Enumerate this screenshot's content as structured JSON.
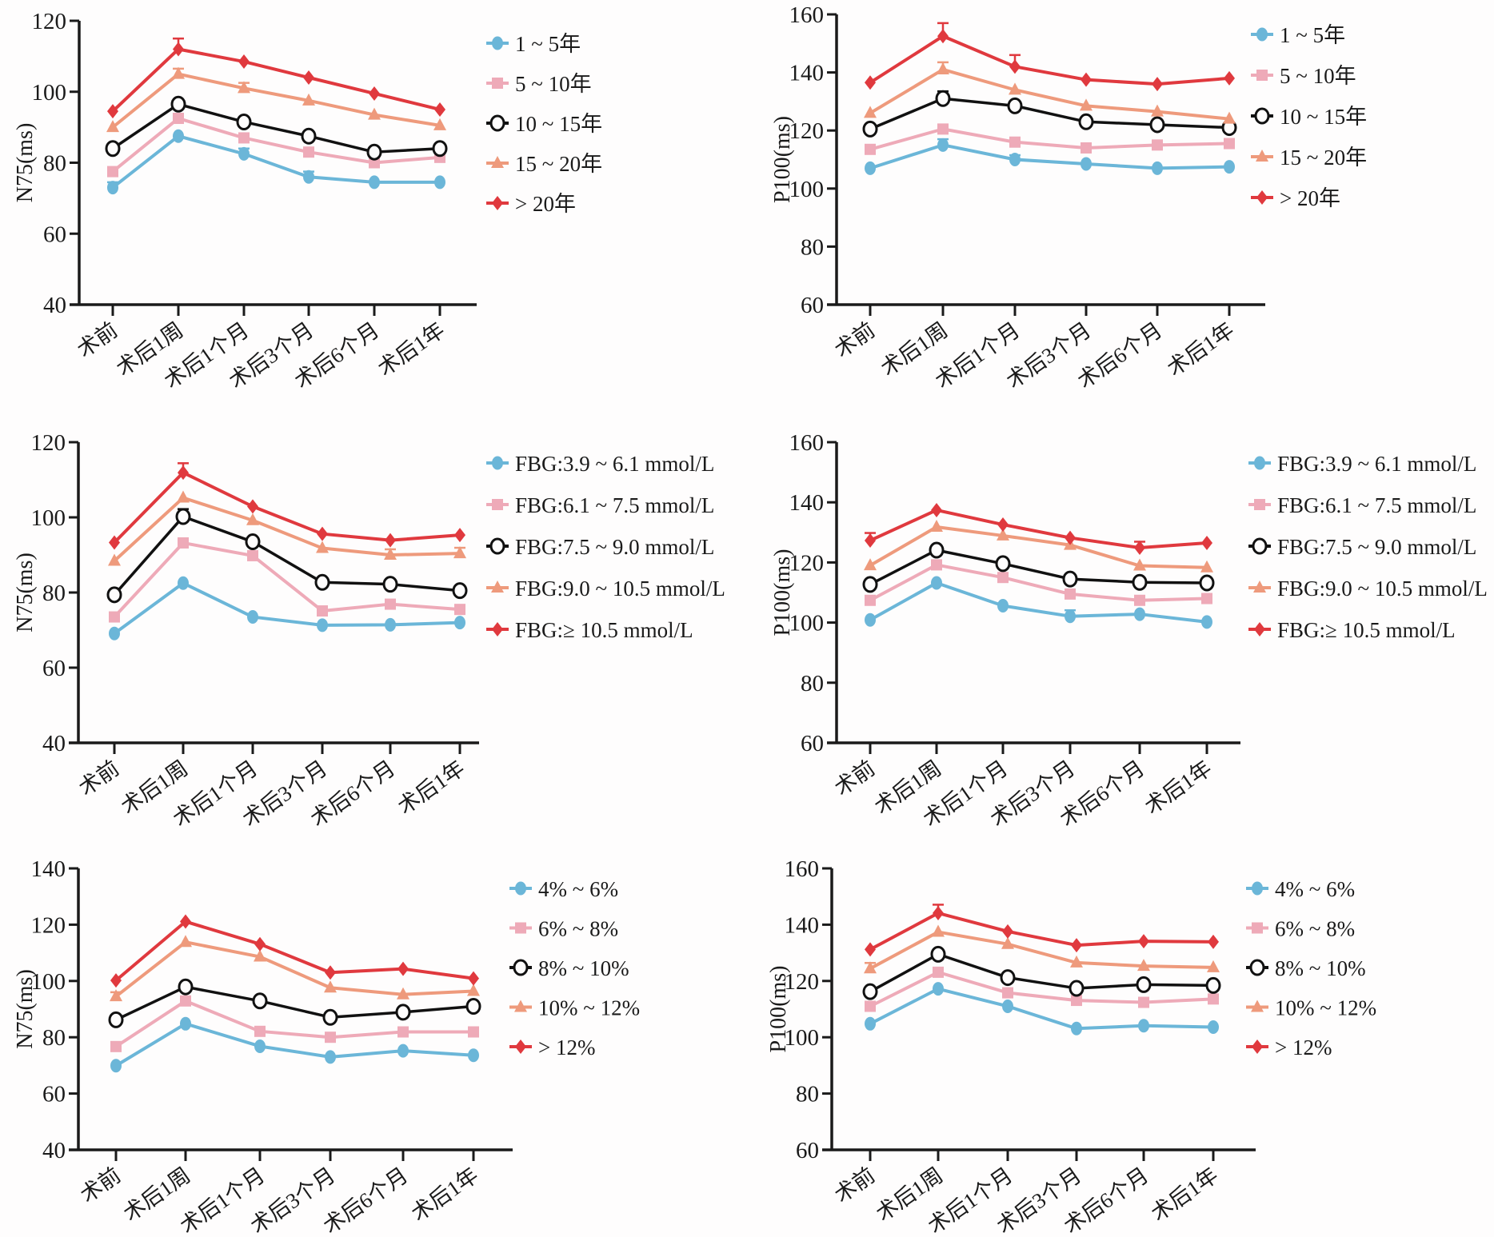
{
  "chart_data": [
    {
      "id": "n75-duration",
      "type": "line",
      "ylabel": "N75(ms)",
      "ylim": [
        40,
        120
      ],
      "yticks": [
        40,
        60,
        80,
        100,
        120
      ],
      "categories": [
        "术前",
        "术后1周",
        "术后1个月",
        "术后3个月",
        "术后6个月",
        "术后1年"
      ],
      "grid": false,
      "legend_position": "right",
      "series": [
        {
          "name": "1 ~ 5年",
          "marker": "circle",
          "color": "#6bb6d8",
          "values": [
            73.0,
            87.5,
            82.5,
            76.0,
            74.5,
            74.5
          ],
          "err": [
            1.5,
            0,
            1.5,
            1.5,
            0,
            0
          ]
        },
        {
          "name": "5 ~ 10年",
          "marker": "square",
          "color": "#eeaab8",
          "values": [
            77.5,
            92.5,
            87.0,
            83.0,
            80.0,
            81.5
          ],
          "err": [
            0,
            0,
            0,
            0,
            0,
            0
          ]
        },
        {
          "name": "10 ~ 15年",
          "marker": "open-circle",
          "color": "#111111",
          "values": [
            84.0,
            96.5,
            91.5,
            87.5,
            83.0,
            84.0
          ],
          "err": [
            0,
            0,
            0,
            0,
            0,
            0
          ]
        },
        {
          "name": "15 ~ 20年",
          "marker": "triangle",
          "color": "#ee9a7c",
          "values": [
            90.0,
            105.0,
            101.0,
            97.5,
            93.5,
            90.5
          ],
          "err": [
            0,
            1.5,
            1.5,
            0,
            0,
            0
          ]
        },
        {
          "name": "> 20年",
          "marker": "diamond",
          "color": "#e0393e",
          "values": [
            94.5,
            112.0,
            108.5,
            104.0,
            99.5,
            95.0
          ],
          "err": [
            0,
            3.0,
            0,
            0,
            0,
            0
          ]
        }
      ]
    },
    {
      "id": "p100-duration",
      "type": "line",
      "ylabel": "P100(ms)",
      "ylim": [
        60,
        160
      ],
      "yticks": [
        60,
        80,
        100,
        120,
        140,
        160
      ],
      "categories": [
        "术前",
        "术后1周",
        "术后1个月",
        "术后3个月",
        "术后6个月",
        "术后1年"
      ],
      "grid": false,
      "legend_position": "right",
      "series": [
        {
          "name": "1 ~ 5年",
          "marker": "circle",
          "color": "#6bb6d8",
          "values": [
            107.0,
            115.0,
            110.0,
            108.5,
            107.0,
            107.5
          ],
          "err": [
            0,
            2.0,
            1.5,
            0,
            0,
            0
          ]
        },
        {
          "name": "5 ~ 10年",
          "marker": "square",
          "color": "#eeaab8",
          "values": [
            113.5,
            120.5,
            116.0,
            114.0,
            115.0,
            115.5
          ],
          "err": [
            0,
            0,
            0,
            0,
            0,
            0
          ]
        },
        {
          "name": "10 ~ 15年",
          "marker": "open-circle",
          "color": "#111111",
          "values": [
            120.5,
            131.0,
            128.5,
            123.0,
            122.0,
            121.0
          ],
          "err": [
            0,
            2.5,
            0,
            0,
            0,
            0
          ]
        },
        {
          "name": "15 ~ 20年",
          "marker": "triangle",
          "color": "#ee9a7c",
          "values": [
            126.0,
            141.0,
            134.0,
            128.5,
            126.5,
            124.0
          ],
          "err": [
            0,
            2.5,
            0,
            0,
            0,
            0
          ]
        },
        {
          "name": "> 20年",
          "marker": "diamond",
          "color": "#e0393e",
          "values": [
            136.5,
            152.5,
            142.0,
            137.5,
            136.0,
            138.0
          ],
          "err": [
            0,
            4.5,
            4.0,
            0,
            0,
            0
          ]
        }
      ]
    },
    {
      "id": "n75-fbg",
      "type": "line",
      "ylabel": "N75(ms)",
      "ylim": [
        40,
        120
      ],
      "yticks": [
        40,
        60,
        80,
        100,
        120
      ],
      "categories": [
        "术前",
        "术后1周",
        "术后1个月",
        "术后3个月",
        "术后6个月",
        "术后1年"
      ],
      "grid": false,
      "legend_position": "right",
      "series": [
        {
          "name": "FBG:3.9 ~ 6.1 mmol/L",
          "marker": "circle",
          "color": "#6bb6d8",
          "values": [
            69.1,
            82.5,
            73.5,
            71.3,
            71.4,
            72.0
          ],
          "err": [
            0,
            0,
            0,
            0,
            0,
            0
          ]
        },
        {
          "name": "FBG:6.1 ~ 7.5 mmol/L",
          "marker": "square",
          "color": "#eeaab8",
          "values": [
            73.5,
            93.2,
            89.8,
            75.1,
            76.9,
            75.5
          ],
          "err": [
            0,
            0,
            0,
            0,
            0,
            0
          ]
        },
        {
          "name": "FBG:7.5 ~ 9.0 mmol/L",
          "marker": "open-circle",
          "color": "#111111",
          "values": [
            79.4,
            100.2,
            93.5,
            82.7,
            82.2,
            80.5
          ],
          "err": [
            0,
            2.0,
            0,
            0,
            0,
            0
          ]
        },
        {
          "name": "FBG:9.0 ~ 10.5 mmol/L",
          "marker": "triangle",
          "color": "#ee9a7c",
          "values": [
            88.4,
            105.2,
            99.2,
            91.8,
            90.0,
            90.4
          ],
          "err": [
            0,
            0,
            0,
            0,
            1.5,
            1.5
          ]
        },
        {
          "name": "FBG:≥ 10.5 mmol/L",
          "marker": "diamond",
          "color": "#e0393e",
          "values": [
            93.3,
            111.9,
            102.9,
            95.6,
            93.9,
            95.3
          ],
          "err": [
            0,
            2.5,
            0,
            0,
            0,
            0
          ]
        }
      ]
    },
    {
      "id": "p100-fbg",
      "type": "line",
      "ylabel": "P100(ms)",
      "ylim": [
        60,
        160
      ],
      "yticks": [
        60,
        80,
        100,
        120,
        140,
        160
      ],
      "categories": [
        "术前",
        "术后1周",
        "术后1个月",
        "术后3个月",
        "术后6个月",
        "术后1年"
      ],
      "grid": false,
      "legend_position": "right",
      "series": [
        {
          "name": "FBG:3.9 ~ 6.1 mmol/L",
          "marker": "circle",
          "color": "#6bb6d8",
          "values": [
            100.9,
            113.2,
            105.6,
            102.1,
            102.8,
            100.2
          ],
          "err": [
            0,
            0,
            0,
            2.0,
            0,
            0
          ]
        },
        {
          "name": "FBG:6.1 ~ 7.5 mmol/L",
          "marker": "square",
          "color": "#eeaab8",
          "values": [
            107.4,
            119.2,
            115.0,
            109.5,
            107.4,
            108.0
          ],
          "err": [
            0,
            0,
            0,
            0,
            0,
            0
          ]
        },
        {
          "name": "FBG:7.5 ~ 9.0 mmol/L",
          "marker": "open-circle",
          "color": "#111111",
          "values": [
            112.7,
            124.1,
            119.6,
            114.5,
            113.4,
            113.2
          ],
          "err": [
            0,
            0,
            0,
            0,
            0,
            0
          ]
        },
        {
          "name": "FBG:9.0 ~ 10.5 mmol/L",
          "marker": "triangle",
          "color": "#ee9a7c",
          "values": [
            119.0,
            131.8,
            128.9,
            125.8,
            118.9,
            118.3
          ],
          "err": [
            0,
            0,
            0,
            0,
            0,
            0
          ]
        },
        {
          "name": "FBG:≥ 10.5 mmol/L",
          "marker": "diamond",
          "color": "#e0393e",
          "values": [
            127.3,
            137.4,
            132.6,
            128.2,
            124.9,
            126.5
          ],
          "err": [
            2.5,
            0,
            0,
            0,
            2.0,
            0
          ]
        }
      ]
    },
    {
      "id": "n75-hba1c",
      "type": "line",
      "ylabel": "N75(ms)",
      "ylim": [
        40,
        140
      ],
      "yticks": [
        40,
        60,
        80,
        100,
        120,
        140
      ],
      "categories": [
        "术前",
        "术后1周",
        "术后1个月",
        "术后3个月",
        "术后6个月",
        "术后1年"
      ],
      "grid": false,
      "legend_position": "right",
      "series": [
        {
          "name": "4% ~ 6%",
          "marker": "circle",
          "color": "#6bb6d8",
          "values": [
            69.9,
            84.8,
            76.8,
            73.0,
            75.2,
            73.6
          ],
          "err": [
            0,
            0,
            0,
            0,
            0,
            0
          ]
        },
        {
          "name": "6% ~ 8%",
          "marker": "square",
          "color": "#eeaab8",
          "values": [
            76.7,
            92.9,
            82.1,
            80.0,
            81.9,
            81.9
          ],
          "err": [
            0,
            0,
            0,
            0,
            0,
            0
          ]
        },
        {
          "name": "8% ~ 10%",
          "marker": "open-circle",
          "color": "#111111",
          "values": [
            86.2,
            97.9,
            92.9,
            87.1,
            88.9,
            91.0
          ],
          "err": [
            0,
            0,
            0,
            0,
            0,
            0
          ]
        },
        {
          "name": "10% ~ 12%",
          "marker": "triangle",
          "color": "#ee9a7c",
          "values": [
            94.5,
            113.8,
            108.6,
            97.6,
            95.2,
            96.4
          ],
          "err": [
            1.5,
            0,
            0,
            0,
            0,
            0
          ]
        },
        {
          "name": "> 12%",
          "marker": "diamond",
          "color": "#e0393e",
          "values": [
            100.2,
            121.1,
            113.1,
            103.0,
            104.3,
            100.9
          ],
          "err": [
            0,
            0,
            0,
            0,
            0,
            0
          ]
        }
      ]
    },
    {
      "id": "p100-hba1c",
      "type": "line",
      "ylabel": "P100(ms)",
      "ylim": [
        60,
        160
      ],
      "yticks": [
        60,
        80,
        100,
        120,
        140,
        160
      ],
      "categories": [
        "术前",
        "术后1周",
        "术后1个月",
        "术后3个月",
        "术后6个月",
        "术后1年"
      ],
      "grid": false,
      "legend_position": "right",
      "series": [
        {
          "name": "4% ~ 6%",
          "marker": "circle",
          "color": "#6bb6d8",
          "values": [
            104.8,
            117.2,
            111.0,
            103.1,
            104.1,
            103.6
          ],
          "err": [
            0,
            0,
            0,
            0,
            0,
            0
          ]
        },
        {
          "name": "6% ~ 8%",
          "marker": "square",
          "color": "#eeaab8",
          "values": [
            111.0,
            123.1,
            115.8,
            113.1,
            112.4,
            113.6
          ],
          "err": [
            0,
            0,
            0,
            0,
            0,
            0
          ]
        },
        {
          "name": "8% ~ 10%",
          "marker": "open-circle",
          "color": "#111111",
          "values": [
            116.2,
            129.5,
            121.2,
            117.4,
            118.7,
            118.4
          ],
          "err": [
            0,
            0,
            0,
            0,
            0,
            0
          ]
        },
        {
          "name": "10% ~ 12%",
          "marker": "triangle",
          "color": "#ee9a7c",
          "values": [
            124.4,
            137.4,
            133.1,
            126.5,
            125.3,
            124.8
          ],
          "err": [
            2.0,
            0,
            0,
            0,
            0,
            0
          ]
        },
        {
          "name": "> 12%",
          "marker": "diamond",
          "color": "#e0393e",
          "values": [
            131.2,
            144.1,
            137.6,
            132.7,
            134.1,
            133.9
          ],
          "err": [
            0,
            3.0,
            0,
            0,
            0,
            0
          ]
        }
      ]
    }
  ]
}
